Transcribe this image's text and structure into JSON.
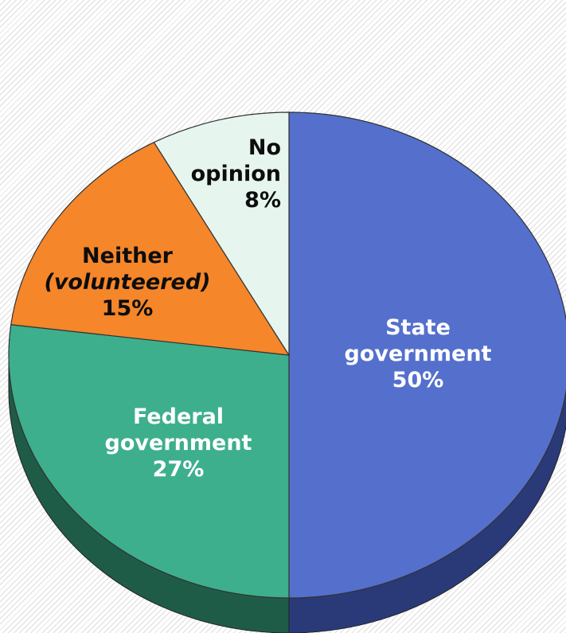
{
  "chart_data": {
    "type": "pie",
    "title": "",
    "slices": [
      {
        "label_lines": [
          "State",
          "government"
        ],
        "value": 50,
        "value_label": "50%",
        "color": "#5470cc",
        "side_color": "#2a3a78",
        "label_dark_bg": true
      },
      {
        "label_lines": [
          "Federal",
          "government"
        ],
        "value": 27,
        "value_label": "27%",
        "color": "#3daf8c",
        "side_color": "#1f5c47",
        "label_dark_bg": true
      },
      {
        "label_lines": [
          "Neither",
          "(volunteered)"
        ],
        "value": 15,
        "value_label": "15%",
        "color": "#f5862a",
        "side_color": "#a8571a",
        "label_dark_bg": false
      },
      {
        "label_lines": [
          "No",
          "opinion"
        ],
        "value": 8,
        "value_label": "8%",
        "color": "#e6f6ef",
        "side_color": "#9fb4aa",
        "label_dark_bg": false
      }
    ],
    "style": "3d-tilted",
    "legend": "none"
  }
}
